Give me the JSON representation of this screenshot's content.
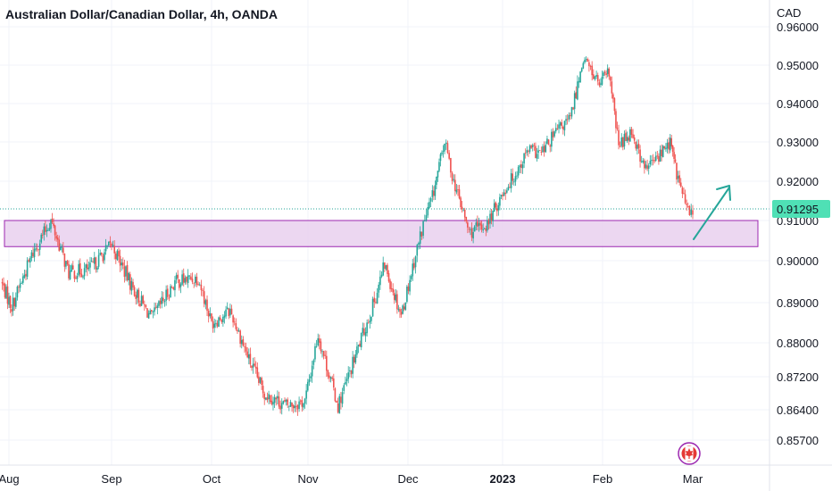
{
  "header": {
    "title": "Australian Dollar/Canadian Dollar, 4h, OANDA"
  },
  "axis": {
    "currency": "CAD"
  },
  "colors": {
    "up": "#26a69a",
    "down": "#ef5350",
    "zone_fill": "#e9d0ef",
    "zone_stroke": "#9c27b0",
    "arrow": "#26a69a",
    "price_tag": "#4fe0b5",
    "grid": "#f0f3fa"
  },
  "chart_data": {
    "type": "candlestick",
    "title": "Australian Dollar/Canadian Dollar, 4h, OANDA",
    "timeframe": "4h",
    "source": "OANDA",
    "currency": "CAD",
    "y_ticks": [
      "0.96000",
      "0.95000",
      "0.94000",
      "0.93000",
      "0.92000",
      "0.91000",
      "0.90000",
      "0.89000",
      "0.88000",
      "0.87200",
      "0.86400",
      "0.85700"
    ],
    "x_ticks": [
      {
        "label": "Aug",
        "bold": false
      },
      {
        "label": "Sep",
        "bold": false
      },
      {
        "label": "Oct",
        "bold": false
      },
      {
        "label": "Nov",
        "bold": false
      },
      {
        "label": "Dec",
        "bold": false
      },
      {
        "label": "2023",
        "bold": true
      },
      {
        "label": "Feb",
        "bold": false
      },
      {
        "label": "Mar",
        "bold": false
      }
    ],
    "last_price": "0.91295",
    "support_zone": {
      "low": 0.9035,
      "high": 0.91
    },
    "price_path": [
      {
        "date": "Aug 1",
        "value": 0.895
      },
      {
        "date": "Aug 4",
        "value": 0.889
      },
      {
        "date": "Aug 10",
        "value": 0.902
      },
      {
        "date": "Aug 15",
        "value": 0.91
      },
      {
        "date": "Aug 20",
        "value": 0.897
      },
      {
        "date": "Aug 26",
        "value": 0.898
      },
      {
        "date": "Sep 1",
        "value": 0.904
      },
      {
        "date": "Sep 7",
        "value": 0.894
      },
      {
        "date": "Sep 13",
        "value": 0.886
      },
      {
        "date": "Sep 20",
        "value": 0.895
      },
      {
        "date": "Sep 27",
        "value": 0.896
      },
      {
        "date": "Oct 1",
        "value": 0.885
      },
      {
        "date": "Oct 7",
        "value": 0.888
      },
      {
        "date": "Oct 13",
        "value": 0.876
      },
      {
        "date": "Oct 18",
        "value": 0.868
      },
      {
        "date": "Oct 25",
        "value": 0.865
      },
      {
        "date": "Oct 31",
        "value": 0.866
      },
      {
        "date": "Nov 4",
        "value": 0.882
      },
      {
        "date": "Nov 10",
        "value": 0.865
      },
      {
        "date": "Nov 14",
        "value": 0.874
      },
      {
        "date": "Nov 20",
        "value": 0.888
      },
      {
        "date": "Nov 24",
        "value": 0.899
      },
      {
        "date": "Nov 29",
        "value": 0.887
      },
      {
        "date": "Dec 3",
        "value": 0.9
      },
      {
        "date": "Dec 6",
        "value": 0.909
      },
      {
        "date": "Dec 9",
        "value": 0.916
      },
      {
        "date": "Dec 13",
        "value": 0.93
      },
      {
        "date": "Dec 16",
        "value": 0.92
      },
      {
        "date": "Dec 21",
        "value": 0.907
      },
      {
        "date": "Dec 27",
        "value": 0.909
      },
      {
        "date": "Jan 1",
        "value": 0.917
      },
      {
        "date": "Jan 5",
        "value": 0.922
      },
      {
        "date": "Jan 9",
        "value": 0.928
      },
      {
        "date": "Jan 13",
        "value": 0.927
      },
      {
        "date": "Jan 18",
        "value": 0.933
      },
      {
        "date": "Jan 22",
        "value": 0.936
      },
      {
        "date": "Jan 26",
        "value": 0.952
      },
      {
        "date": "Jan 31",
        "value": 0.945
      },
      {
        "date": "Feb 3",
        "value": 0.948
      },
      {
        "date": "Feb 6",
        "value": 0.929
      },
      {
        "date": "Feb 10",
        "value": 0.933
      },
      {
        "date": "Feb 14",
        "value": 0.923
      },
      {
        "date": "Feb 18",
        "value": 0.926
      },
      {
        "date": "Feb 22",
        "value": 0.93
      },
      {
        "date": "Feb 24",
        "value": 0.922
      },
      {
        "date": "Feb 28",
        "value": 0.911
      },
      {
        "date": "Mar 1",
        "value": 0.913
      }
    ]
  }
}
